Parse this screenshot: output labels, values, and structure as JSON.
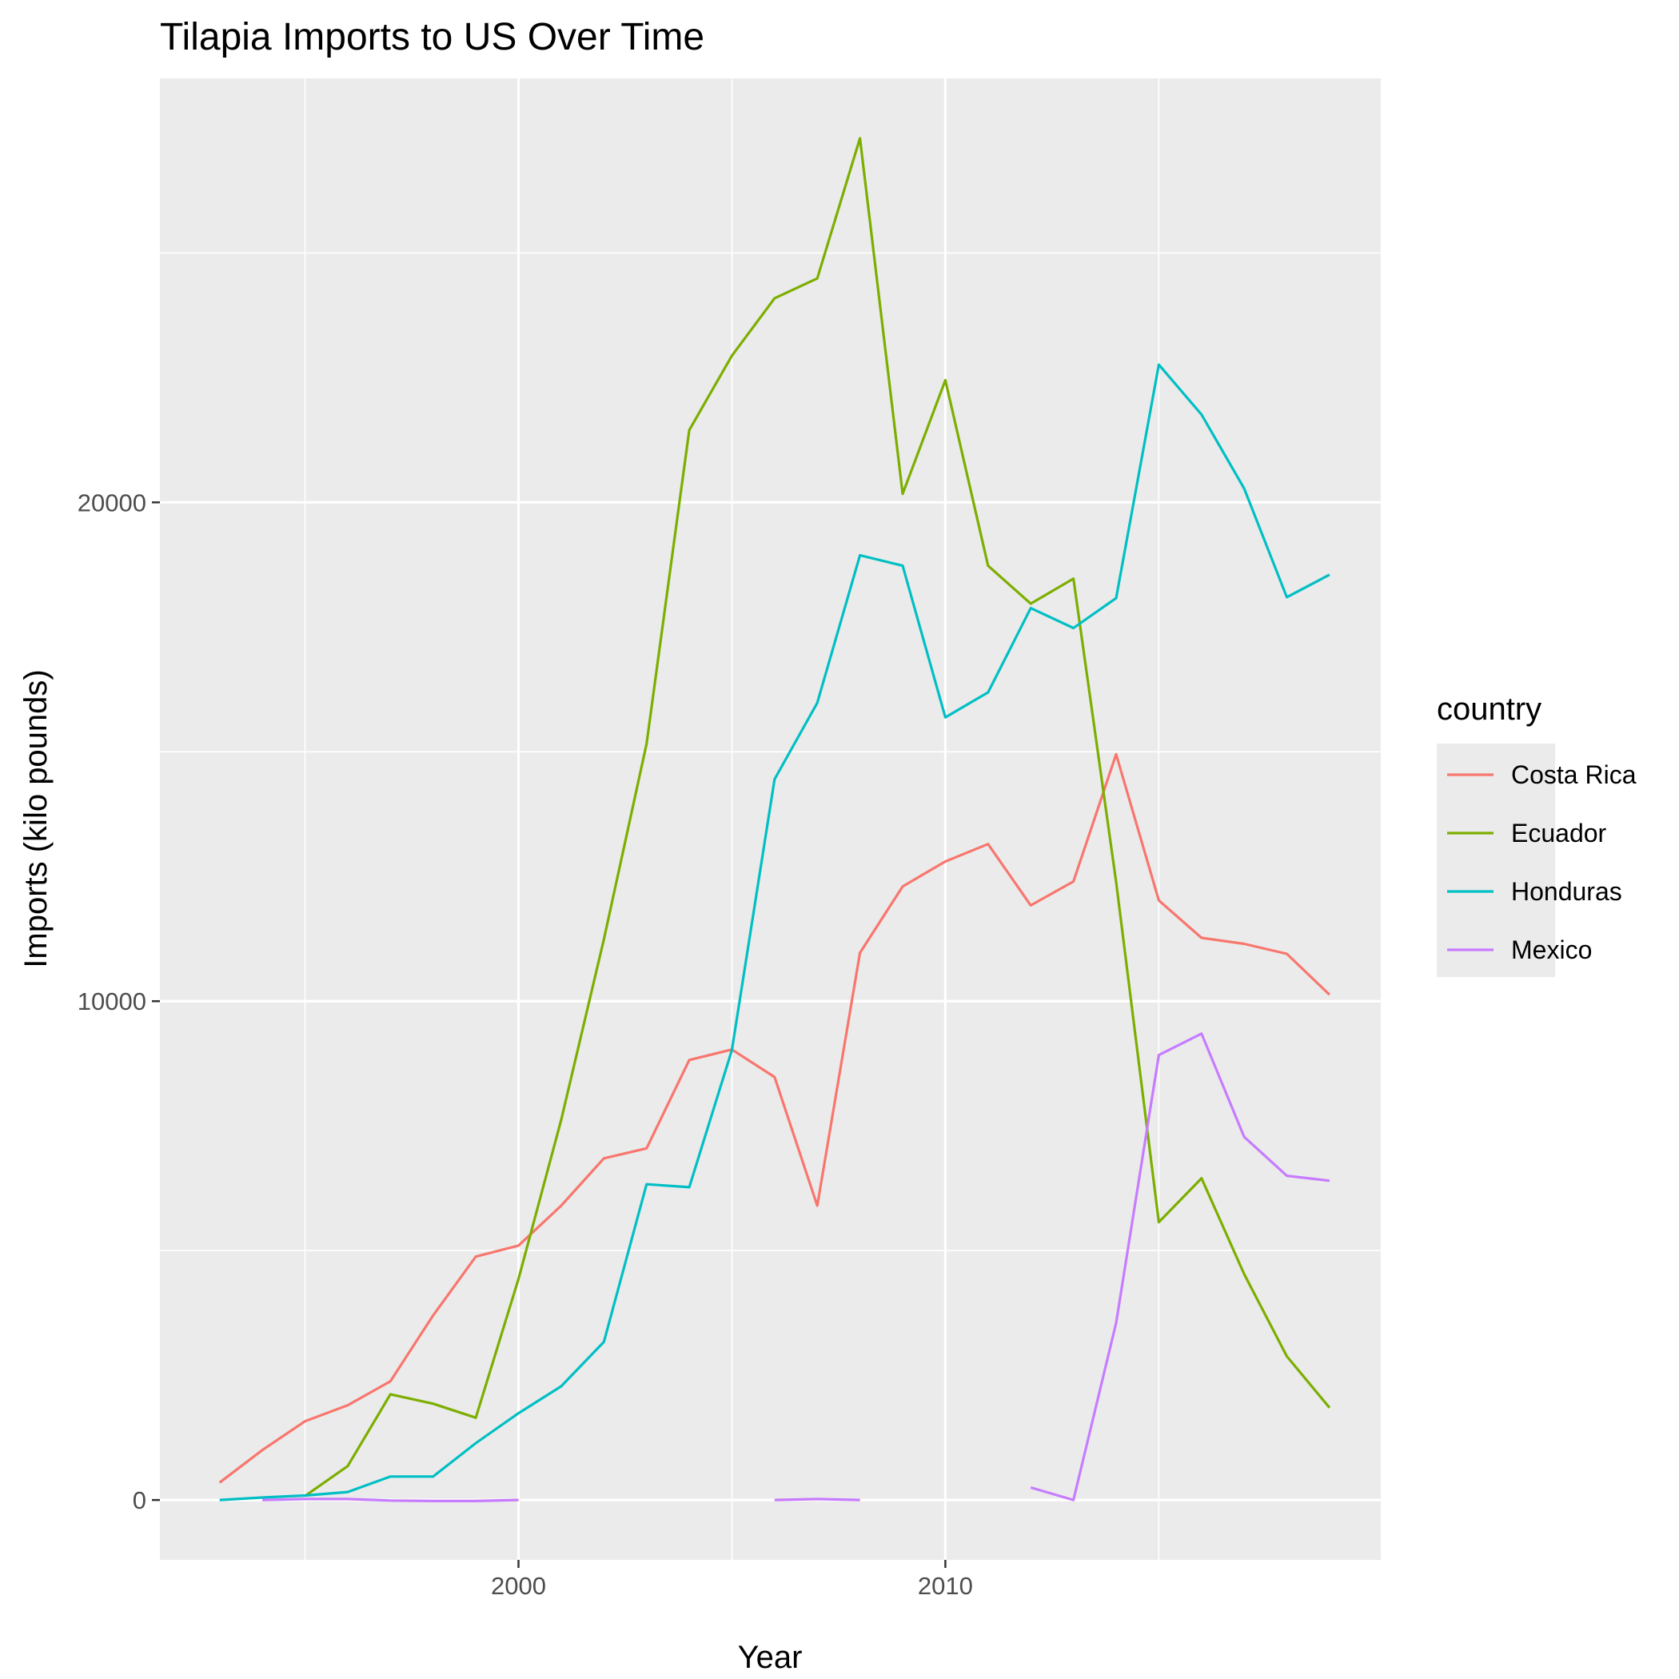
{
  "chart_data": {
    "type": "line",
    "title": "Tilapia Imports to US Over Time",
    "xlabel": "Year",
    "ylabel": "Imports (kilo pounds)",
    "xlim": [
      1991.6,
      2020.2
    ],
    "ylim": [
      -1200,
      28500
    ],
    "x_ticks": [
      2000,
      2010
    ],
    "x_minor_ticks": [
      1995,
      2005,
      2015
    ],
    "y_ticks": [
      0,
      10000,
      20000
    ],
    "y_minor_ticks": [
      5000,
      15000,
      25000
    ],
    "grid": true,
    "legend": {
      "title": "country",
      "position": "right"
    },
    "series": [
      {
        "name": "Costa Rica",
        "color": "#F8766D",
        "points": [
          [
            1993,
            350
          ],
          [
            1994,
            1000
          ],
          [
            1995,
            1580
          ],
          [
            1996,
            1900
          ],
          [
            1997,
            2380
          ],
          [
            1998,
            3700
          ],
          [
            1999,
            4880
          ],
          [
            2000,
            5100
          ],
          [
            2001,
            5900
          ],
          [
            2002,
            6850
          ],
          [
            2003,
            7050
          ],
          [
            2004,
            8820
          ],
          [
            2005,
            9030
          ],
          [
            2006,
            8480
          ],
          [
            2007,
            5900
          ],
          [
            2008,
            10970
          ],
          [
            2009,
            12300
          ],
          [
            2010,
            12800
          ],
          [
            2011,
            13150
          ],
          [
            2012,
            11920
          ],
          [
            2013,
            12400
          ],
          [
            2014,
            14950
          ],
          [
            2015,
            12020
          ],
          [
            2016,
            11270
          ],
          [
            2017,
            11150
          ],
          [
            2018,
            10950
          ],
          [
            2019,
            10130
          ]
        ]
      },
      {
        "name": "Ecuador",
        "color": "#7CAE00",
        "points": [
          [
            1995,
            80
          ],
          [
            1996,
            680
          ],
          [
            1997,
            2120
          ],
          [
            1998,
            1930
          ],
          [
            1999,
            1650
          ],
          [
            2000,
            4430
          ],
          [
            2001,
            7620
          ],
          [
            2002,
            11240
          ],
          [
            2003,
            15160
          ],
          [
            2004,
            21450
          ],
          [
            2005,
            22940
          ],
          [
            2006,
            24090
          ],
          [
            2007,
            24490
          ],
          [
            2008,
            27300
          ],
          [
            2009,
            20170
          ],
          [
            2010,
            22450
          ],
          [
            2011,
            18730
          ],
          [
            2012,
            17970
          ],
          [
            2013,
            18470
          ],
          [
            2014,
            12390
          ],
          [
            2015,
            5570
          ],
          [
            2016,
            6450
          ],
          [
            2017,
            4530
          ],
          [
            2018,
            2880
          ],
          [
            2019,
            1850
          ]
        ]
      },
      {
        "name": "Honduras",
        "color": "#00BFC4",
        "points": [
          [
            1993,
            0
          ],
          [
            1994,
            50
          ],
          [
            1995,
            90
          ],
          [
            1996,
            160
          ],
          [
            1997,
            470
          ],
          [
            1998,
            470
          ],
          [
            1999,
            1140
          ],
          [
            2000,
            1740
          ],
          [
            2001,
            2280
          ],
          [
            2002,
            3170
          ],
          [
            2003,
            6330
          ],
          [
            2004,
            6270
          ],
          [
            2005,
            9020
          ],
          [
            2006,
            14450
          ],
          [
            2007,
            15980
          ],
          [
            2008,
            18940
          ],
          [
            2009,
            18730
          ],
          [
            2010,
            15690
          ],
          [
            2011,
            16190
          ],
          [
            2012,
            17880
          ],
          [
            2013,
            17480
          ],
          [
            2014,
            18080
          ],
          [
            2015,
            22760
          ],
          [
            2016,
            21760
          ],
          [
            2017,
            20280
          ],
          [
            2018,
            18100
          ],
          [
            2019,
            18550
          ]
        ]
      },
      {
        "name": "Mexico",
        "color": "#C77CFF",
        "segments": [
          [
            [
              1994,
              0
            ],
            [
              1995,
              20
            ],
            [
              1996,
              20
            ],
            [
              1997,
              -10
            ],
            [
              1998,
              -20
            ],
            [
              1999,
              -20
            ],
            [
              2000,
              0
            ]
          ],
          [
            [
              2006,
              0
            ],
            [
              2007,
              20
            ],
            [
              2008,
              0
            ]
          ],
          [
            [
              2012,
              250
            ],
            [
              2013,
              0
            ],
            [
              2014,
              3550
            ],
            [
              2015,
              8920
            ],
            [
              2016,
              9350
            ],
            [
              2017,
              7280
            ],
            [
              2018,
              6500
            ],
            [
              2019,
              6400
            ]
          ]
        ]
      }
    ]
  }
}
